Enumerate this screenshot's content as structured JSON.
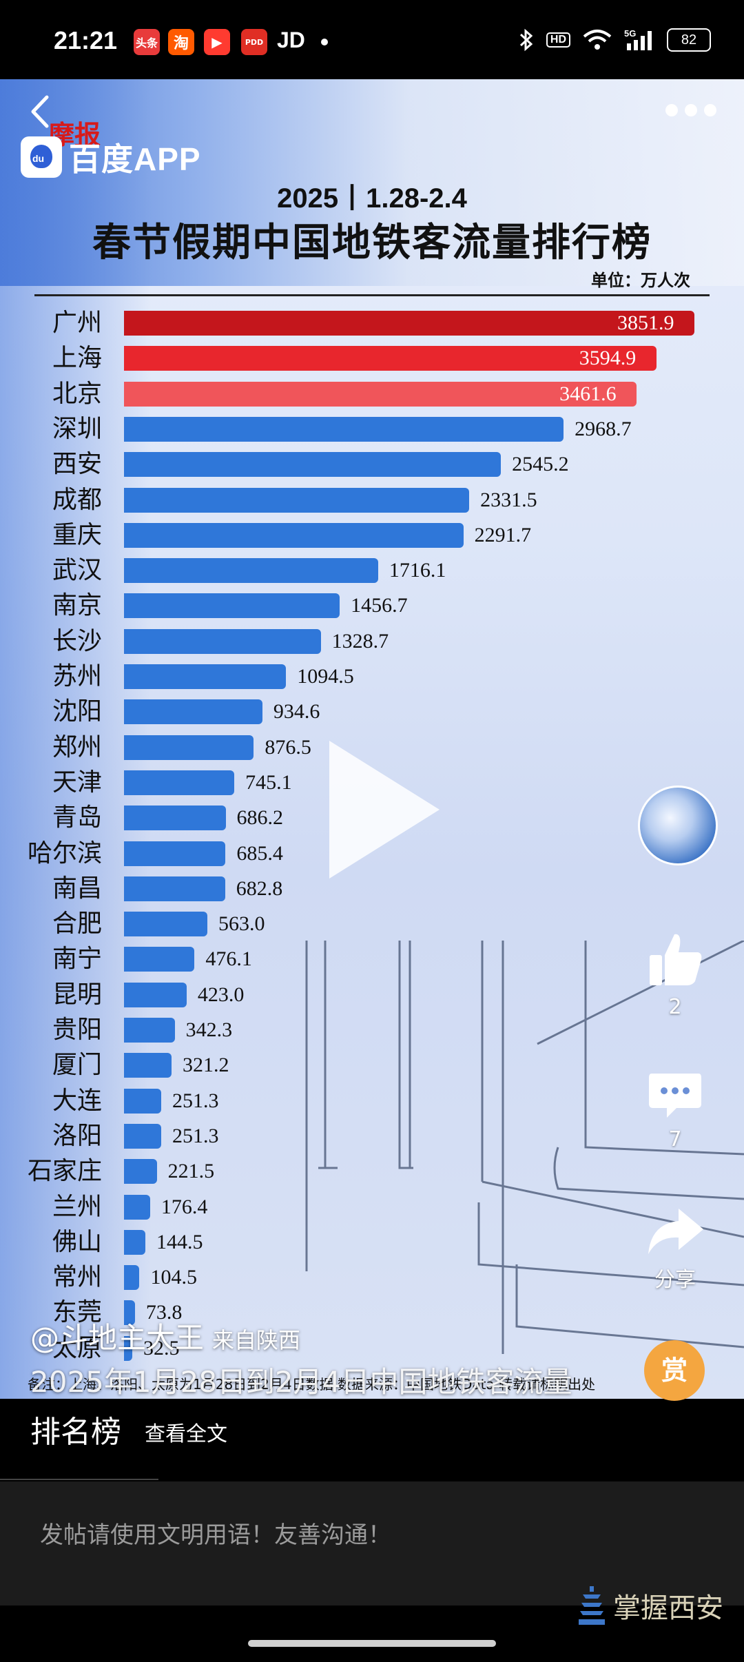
{
  "status_bar": {
    "time": "21:21",
    "apps": [
      {
        "label": "头条",
        "color": "#e83b3b"
      },
      {
        "label": "淘",
        "color": "#ff5a00"
      },
      {
        "label": "▶",
        "color": "#ff3b30"
      },
      {
        "label": "PDD",
        "color": "#e02e24"
      }
    ],
    "jd": "JD",
    "battery": "82",
    "network": "5G",
    "hd": "HD"
  },
  "brand": {
    "logo_text": "百度APP",
    "moebao": "摩报"
  },
  "chart": {
    "subtitle": "2025丨1.28-2.4",
    "title": "春节假期中国地铁客流量排行榜",
    "unit": "单位：万人次",
    "source": "备注：上海、洛阳、太原为1月28日到2月4日数据    数据来源：中国地铁Data    转载请标明出处"
  },
  "chart_data": {
    "type": "bar",
    "orientation": "horizontal",
    "title": "春节假期中国地铁客流量排行榜",
    "subtitle": "2025丨1.28-2.4",
    "unit": "单位：万人次",
    "categories": [
      "广州",
      "上海",
      "北京",
      "深圳",
      "西安",
      "成都",
      "重庆",
      "武汉",
      "南京",
      "长沙",
      "苏州",
      "沈阳",
      "郑州",
      "天津",
      "青岛",
      "哈尔滨",
      "南昌",
      "合肥",
      "南宁",
      "昆明",
      "贵阳",
      "厦门",
      "大连",
      "洛阳",
      "石家庄",
      "兰州",
      "佛山",
      "常州",
      "东莞",
      "太原"
    ],
    "values": [
      3851.9,
      3594.9,
      3461.6,
      2968.7,
      2545.2,
      2331.5,
      2291.7,
      1716.1,
      1456.7,
      1328.7,
      1094.5,
      934.6,
      876.5,
      745.1,
      686.2,
      685.4,
      682.8,
      563.0,
      476.1,
      423.0,
      342.3,
      321.2,
      251.3,
      251.3,
      221.5,
      176.4,
      144.5,
      104.5,
      73.8,
      32.5
    ],
    "value_labels": [
      "3851.9",
      "3594.9",
      "3461.6",
      "2968.7",
      "2545.2",
      "2331.5",
      "2291.7",
      "1716.1",
      "1456.7",
      "1328.7",
      "1094.5",
      "934.6",
      "876.5",
      "745.1",
      "686.2",
      "685.4",
      "682.8",
      "563.0",
      "476.1",
      "423.0",
      "342.3",
      "321.2",
      "251.3",
      "251.3",
      "221.5",
      "176.4",
      "144.5",
      "104.5",
      "73.8",
      "32.5"
    ],
    "highlight_colors": [
      "#c4161c",
      "#e8262d",
      "#f0555a"
    ],
    "default_color": "#2f77d9",
    "xlim": [
      0,
      3851.9
    ]
  },
  "actions": {
    "like_count": "2",
    "comment_count": "7",
    "share_label": "分享",
    "reward_label": "赏"
  },
  "post": {
    "author": "@斗地主大王",
    "from": "来自陕西",
    "caption": "2025年1月28日到2月4日中国地铁客流量",
    "caption_line2": "排名榜",
    "read_more": "查看全文"
  },
  "comment": {
    "placeholder": "发帖请使用文明用语！友善沟通！"
  },
  "watermark": {
    "text": "掌握西安"
  }
}
